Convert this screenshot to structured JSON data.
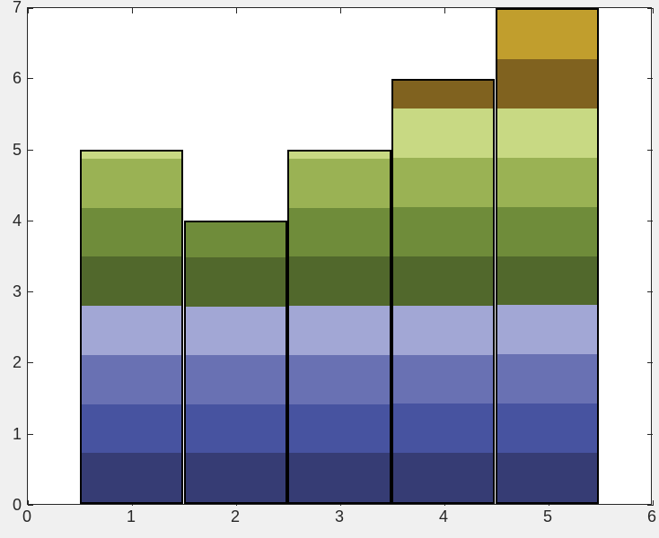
{
  "figure": {
    "background_color": "#f0f0f0",
    "plot_background_color": "#ffffff",
    "axis_color": "#262626",
    "tick_label_color": "#262626"
  },
  "chart_data": {
    "type": "bar",
    "title": "",
    "xlabel": "",
    "ylabel": "",
    "x": [
      1,
      2,
      3,
      4,
      5
    ],
    "values": [
      5,
      4,
      5,
      6,
      7
    ],
    "bar_width": 1,
    "bar_edge_color": "#000000",
    "xlim": [
      0,
      6
    ],
    "ylim": [
      0,
      7
    ],
    "x_tick_values": [
      0,
      1,
      2,
      3,
      4,
      5,
      6
    ],
    "x_tick_labels": [
      "0",
      "1",
      "2",
      "3",
      "4",
      "5",
      "6"
    ],
    "y_tick_values": [
      0,
      1,
      2,
      3,
      4,
      5,
      6,
      7
    ],
    "y_tick_labels": [
      "0",
      "1",
      "2",
      "3",
      "4",
      "5",
      "6",
      "7"
    ],
    "grid": false,
    "legend": null,
    "color_mapping": "horizontal bands of fixed height spanning ylim, shared across all bars",
    "band_height": 0.7,
    "band_colors": [
      "#363c74",
      "#4753a0",
      "#6971b3",
      "#a2a7d5",
      "#51682c",
      "#6f8c3a",
      "#9ab254",
      "#c8d983",
      "#80621f",
      "#c19e2d"
    ]
  }
}
